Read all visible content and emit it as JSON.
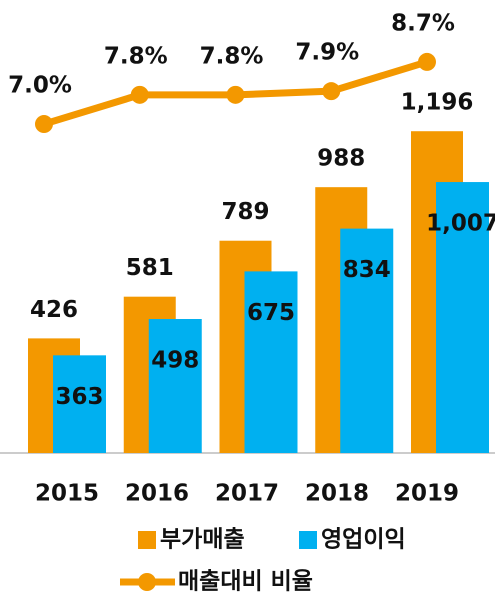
{
  "chart_data": {
    "type": "bar_line",
    "categories": [
      "2015",
      "2016",
      "2017",
      "2018",
      "2019"
    ],
    "series": [
      {
        "name": "부가매출",
        "color": "#f39800",
        "values": [
          426,
          581,
          789,
          988,
          1196
        ],
        "value_labels": [
          "426",
          "581",
          "789",
          "988",
          "1,196"
        ]
      },
      {
        "name": "영업이익",
        "color": "#00b0f0",
        "values": [
          363,
          498,
          675,
          834,
          1007
        ],
        "value_labels": [
          "363",
          "498",
          "675",
          "834",
          "1,007"
        ]
      },
      {
        "name": "매출대비 비율",
        "color": "#f39800",
        "axis": "y2",
        "type": "line",
        "values": [
          7.0,
          7.8,
          7.8,
          7.9,
          8.7
        ],
        "value_labels": [
          "7.0%",
          "7.8%",
          "7.8%",
          "7.9%",
          "8.7%"
        ]
      }
    ],
    "ylim": [
      0,
      1535
    ],
    "y2lim": [
      -2,
      9.3
    ]
  }
}
